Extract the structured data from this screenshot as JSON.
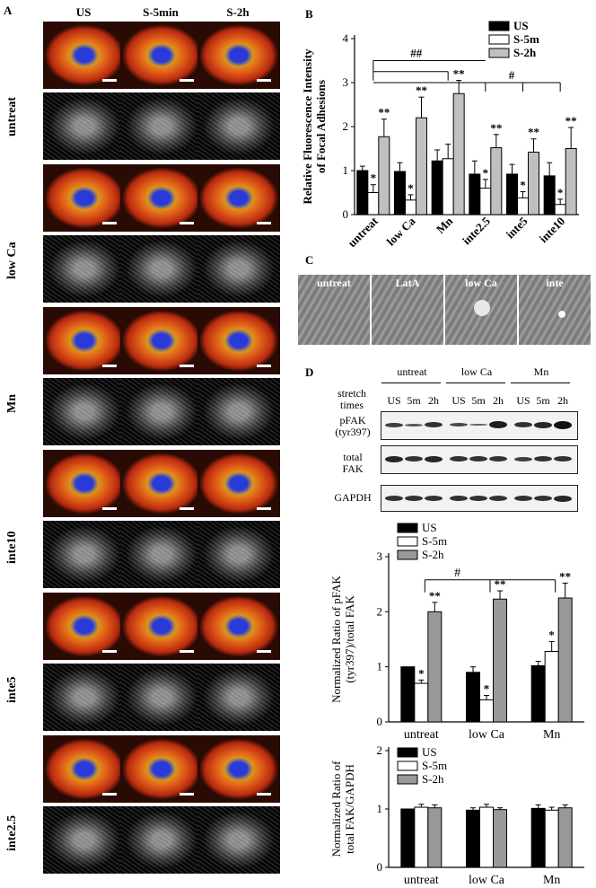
{
  "panel_a": {
    "letter": "A",
    "columns": [
      "US",
      "S-5min",
      "S-2h"
    ],
    "rows": [
      "untreat",
      "low Ca",
      "Mn",
      "inte10",
      "inte5",
      "inte2.5"
    ]
  },
  "panel_c": {
    "letter": "C",
    "images": [
      "untreat",
      "LatA",
      "low Ca",
      "inte"
    ]
  },
  "panel_d": {
    "letter": "D",
    "group_labels": [
      "untreat",
      "low Ca",
      "Mn"
    ],
    "stretch_times_label": [
      "stretch",
      "times"
    ],
    "lane_labels": [
      "US",
      "5m",
      "2h",
      "US",
      "5m",
      "2h",
      "US",
      "5m",
      "2h"
    ],
    "blot_labels": {
      "pfak": [
        "pFAK",
        "(tyr397)"
      ],
      "total": [
        "total",
        "FAK"
      ],
      "gapdh": "GAPDH"
    }
  },
  "chart_data": [
    {
      "id": "B",
      "panel_letter": "B",
      "type": "bar",
      "title": "",
      "ylabel": "Relative Fluorescence Intensity of Focal Adhesions",
      "ylim": [
        0,
        4
      ],
      "yticks": [
        0,
        1,
        2,
        3,
        4
      ],
      "categories": [
        "untreat",
        "low Ca",
        "Mn",
        "inte2.5",
        "inte5",
        "inte10"
      ],
      "series": [
        {
          "name": "US",
          "color": "#000000",
          "values": [
            1.0,
            0.98,
            1.22,
            0.92,
            0.92,
            0.88
          ],
          "errors": [
            0.1,
            0.2,
            0.25,
            0.3,
            0.22,
            0.3
          ]
        },
        {
          "name": "S-5m",
          "color": "#ffffff",
          "values": [
            0.5,
            0.33,
            1.27,
            0.6,
            0.38,
            0.23
          ],
          "errors": [
            0.18,
            0.12,
            0.33,
            0.2,
            0.14,
            0.12
          ]
        },
        {
          "name": "S-2h",
          "color": "#c0c0c0",
          "values": [
            1.77,
            2.2,
            2.75,
            1.52,
            1.42,
            1.5
          ],
          "errors": [
            0.4,
            0.47,
            0.3,
            0.3,
            0.3,
            0.48
          ]
        }
      ],
      "annotations": {
        "S-5m": [
          "*",
          "*",
          "",
          "*",
          "*",
          "*"
        ],
        "S-2h": [
          "**",
          "**",
          "**",
          "**",
          "**",
          "**"
        ],
        "brackets": [
          "##",
          "#"
        ]
      },
      "legend": "top-right"
    },
    {
      "id": "D-pFAK",
      "type": "bar",
      "title": "",
      "ylabel": "Normalized Ratio of pFAK (tyr397)/total FAK",
      "ylim": [
        0,
        3
      ],
      "yticks": [
        0,
        1,
        2,
        3
      ],
      "categories": [
        "untreat",
        "low Ca",
        "Mn"
      ],
      "series": [
        {
          "name": "US",
          "color": "#000000",
          "values": [
            1.0,
            0.9,
            1.02
          ],
          "errors": [
            0.0,
            0.1,
            0.08
          ]
        },
        {
          "name": "S-5m",
          "color": "#ffffff",
          "values": [
            0.7,
            0.4,
            1.28
          ],
          "errors": [
            0.06,
            0.08,
            0.18
          ]
        },
        {
          "name": "S-2h",
          "color": "#999999",
          "values": [
            2.0,
            2.23,
            2.25
          ],
          "errors": [
            0.17,
            0.15,
            0.27
          ]
        }
      ],
      "annotations": {
        "S-5m": [
          "*",
          "*",
          "*"
        ],
        "S-2h": [
          "**",
          "**",
          "**"
        ],
        "brackets": [
          "#"
        ]
      },
      "legend": "top-left"
    },
    {
      "id": "D-total",
      "type": "bar",
      "title": "",
      "ylabel": "Normalized Ratio of total FAK/GAPDH",
      "ylim": [
        0,
        2
      ],
      "yticks": [
        0,
        1,
        2
      ],
      "categories": [
        "untreat",
        "low Ca",
        "Mn"
      ],
      "series": [
        {
          "name": "US",
          "color": "#000000",
          "values": [
            1.0,
            0.98,
            1.01
          ],
          "errors": [
            0.0,
            0.04,
            0.06
          ]
        },
        {
          "name": "S-5m",
          "color": "#ffffff",
          "values": [
            1.03,
            1.03,
            0.98
          ],
          "errors": [
            0.05,
            0.05,
            0.05
          ]
        },
        {
          "name": "S-2h",
          "color": "#999999",
          "values": [
            1.02,
            0.99,
            1.02
          ],
          "errors": [
            0.05,
            0.03,
            0.05
          ]
        }
      ],
      "annotations": {
        "S-5m": [
          "",
          "",
          ""
        ],
        "S-2h": [
          "",
          "",
          ""
        ],
        "brackets": []
      },
      "legend": "top-left"
    }
  ]
}
